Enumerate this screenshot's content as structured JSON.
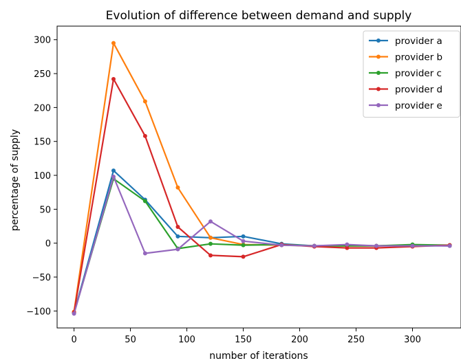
{
  "chart_data": {
    "type": "line",
    "title": "Evolution of difference between demand and supply",
    "xlabel": "number of iterations",
    "ylabel": "percentage of supply",
    "x": [
      0,
      35,
      63,
      92,
      121,
      150,
      184,
      213,
      242,
      268,
      300,
      333
    ],
    "xlim": [
      -15,
      343
    ],
    "ylim": [
      -125,
      320
    ],
    "xticks": [
      0,
      50,
      100,
      150,
      200,
      250,
      300
    ],
    "yticks": [
      -100,
      -50,
      0,
      50,
      100,
      150,
      200,
      250,
      300
    ],
    "grid": false,
    "legend_position": "top-right",
    "series": [
      {
        "name": "provider a",
        "color": "#1f77b4",
        "values": [
          -103,
          107,
          64,
          10,
          8,
          10,
          -1,
          -4,
          -3,
          -4,
          -3,
          -4
        ]
      },
      {
        "name": "provider b",
        "color": "#ff7f0e",
        "values": [
          -101,
          295,
          209,
          82,
          8,
          -2,
          -3,
          -4,
          -4,
          -4,
          -3,
          -3
        ]
      },
      {
        "name": "provider c",
        "color": "#2ca02c",
        "values": [
          -103,
          95,
          62,
          -8,
          -1,
          -3,
          -2,
          -4,
          -4,
          -4,
          -2,
          -3
        ]
      },
      {
        "name": "provider d",
        "color": "#d62728",
        "values": [
          -102,
          242,
          158,
          24,
          -18,
          -20,
          -2,
          -5,
          -7,
          -7,
          -5,
          -3
        ]
      },
      {
        "name": "provider e",
        "color": "#9467bd",
        "values": [
          -104,
          98,
          -15,
          -9,
          32,
          3,
          -3,
          -4,
          -2,
          -4,
          -4,
          -4
        ]
      }
    ]
  }
}
